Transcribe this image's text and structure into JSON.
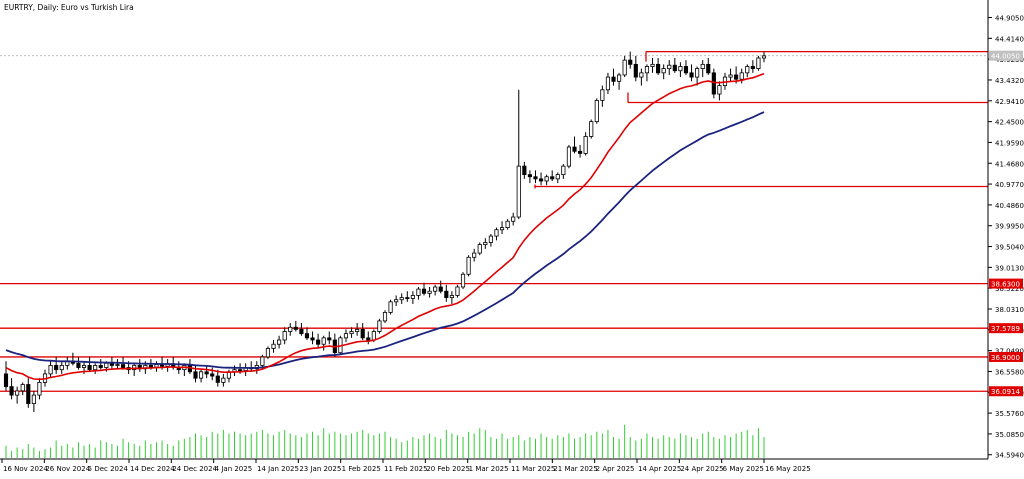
{
  "chart_data": {
    "type": "candlestick",
    "title": "EURTRY, Daily:  Euro vs Turkish Lira",
    "ylim": [
      34.8,
      45.2
    ],
    "y_ticks": [
      "44.9050",
      "44.4140",
      "43.9230",
      "43.4320",
      "42.9410",
      "42.4500",
      "41.9590",
      "41.4680",
      "40.9770",
      "40.4860",
      "39.9950",
      "39.5040",
      "39.0130",
      "38.5220",
      "38.0310",
      "37.5400",
      "37.0490",
      "36.5580",
      "36.0670",
      "35.5760",
      "35.0850",
      "34.5940"
    ],
    "x_labels": [
      "16 Nov 2024",
      "26 Nov 2024",
      "5 Dec 2024",
      "14 Dec 2024",
      "24 Dec 2024",
      "4 Jan 2025",
      "14 Jan 2025",
      "23 Jan 2025",
      "1 Feb 2025",
      "11 Feb 2025",
      "20 Feb 2025",
      "1 Mar 2025",
      "11 Mar 2025",
      "21 Mar 2025",
      "2 Apr 2025",
      "14 Apr 2025",
      "24 Apr 2025",
      "6 May 2025",
      "16 May 2025"
    ],
    "current_price": "44.0050",
    "levels": [
      {
        "value": 44.1,
        "label": ""
      },
      {
        "value": 42.9,
        "label": ""
      },
      {
        "value": 40.92,
        "label": ""
      },
      {
        "value": 38.63,
        "label": "38.6300"
      },
      {
        "value": 37.5789,
        "label": "37.5789"
      },
      {
        "value": 36.9,
        "label": "36.9000"
      },
      {
        "value": 36.0914,
        "label": "36.0914"
      }
    ],
    "candles": [
      [
        36.5,
        36.8,
        36.1,
        36.2
      ],
      [
        36.2,
        36.4,
        35.9,
        36.0
      ],
      [
        36.0,
        36.2,
        35.8,
        36.1
      ],
      [
        36.1,
        36.3,
        36.0,
        36.25
      ],
      [
        36.25,
        36.4,
        35.7,
        35.8
      ],
      [
        35.8,
        36.1,
        35.6,
        36.0
      ],
      [
        36.0,
        36.4,
        35.9,
        36.3
      ],
      [
        36.3,
        36.6,
        36.2,
        36.5
      ],
      [
        36.5,
        36.8,
        36.4,
        36.7
      ],
      [
        36.7,
        36.9,
        36.5,
        36.6
      ],
      [
        36.6,
        36.8,
        36.5,
        36.7
      ],
      [
        36.7,
        36.9,
        36.6,
        36.8
      ],
      [
        36.8,
        37.0,
        36.7,
        36.75
      ],
      [
        36.75,
        36.9,
        36.6,
        36.65
      ],
      [
        36.65,
        36.8,
        36.5,
        36.7
      ],
      [
        36.7,
        36.9,
        36.55,
        36.6
      ],
      [
        36.6,
        36.75,
        36.5,
        36.7
      ],
      [
        36.7,
        36.85,
        36.6,
        36.65
      ],
      [
        36.65,
        36.8,
        36.55,
        36.75
      ],
      [
        36.75,
        36.9,
        36.6,
        36.7
      ],
      [
        36.7,
        36.85,
        36.6,
        36.72
      ],
      [
        36.72,
        36.9,
        36.6,
        36.65
      ],
      [
        36.65,
        36.8,
        36.5,
        36.6
      ],
      [
        36.6,
        36.75,
        36.45,
        36.7
      ],
      [
        36.7,
        36.85,
        36.55,
        36.62
      ],
      [
        36.62,
        36.8,
        36.5,
        36.7
      ],
      [
        36.7,
        36.85,
        36.6,
        36.66
      ],
      [
        36.66,
        36.8,
        36.55,
        36.72
      ],
      [
        36.72,
        36.9,
        36.6,
        36.68
      ],
      [
        36.68,
        36.85,
        36.55,
        36.74
      ],
      [
        36.74,
        36.9,
        36.6,
        36.66
      ],
      [
        36.66,
        36.8,
        36.5,
        36.6
      ],
      [
        36.6,
        36.75,
        36.45,
        36.7
      ],
      [
        36.7,
        36.85,
        36.5,
        36.55
      ],
      [
        36.55,
        36.7,
        36.3,
        36.4
      ],
      [
        36.4,
        36.6,
        36.3,
        36.55
      ],
      [
        36.55,
        36.7,
        36.4,
        36.5
      ],
      [
        36.5,
        36.65,
        36.35,
        36.45
      ],
      [
        36.45,
        36.6,
        36.2,
        36.3
      ],
      [
        36.3,
        36.5,
        36.2,
        36.4
      ],
      [
        36.4,
        36.6,
        36.3,
        36.55
      ],
      [
        36.55,
        36.7,
        36.45,
        36.6
      ],
      [
        36.6,
        36.75,
        36.5,
        36.58
      ],
      [
        36.58,
        36.75,
        36.45,
        36.65
      ],
      [
        36.65,
        36.8,
        36.55,
        36.62
      ],
      [
        36.62,
        36.8,
        36.5,
        36.7
      ],
      [
        36.7,
        36.95,
        36.6,
        36.9
      ],
      [
        36.9,
        37.15,
        36.85,
        37.1
      ],
      [
        37.1,
        37.3,
        37.0,
        37.2
      ],
      [
        37.2,
        37.4,
        37.1,
        37.3
      ],
      [
        37.3,
        37.6,
        37.2,
        37.5
      ],
      [
        37.5,
        37.7,
        37.4,
        37.6
      ],
      [
        37.6,
        37.75,
        37.5,
        37.55
      ],
      [
        37.55,
        37.7,
        37.4,
        37.45
      ],
      [
        37.45,
        37.6,
        37.3,
        37.35
      ],
      [
        37.35,
        37.5,
        37.2,
        37.3
      ],
      [
        37.3,
        37.45,
        37.1,
        37.2
      ],
      [
        37.2,
        37.4,
        37.05,
        37.35
      ],
      [
        37.35,
        37.5,
        37.2,
        37.3
      ],
      [
        37.3,
        37.45,
        36.9,
        37.0
      ],
      [
        37.0,
        37.4,
        36.95,
        37.35
      ],
      [
        37.35,
        37.55,
        37.25,
        37.45
      ],
      [
        37.45,
        37.6,
        37.35,
        37.5
      ],
      [
        37.5,
        37.7,
        37.4,
        37.55
      ],
      [
        37.55,
        37.7,
        37.3,
        37.35
      ],
      [
        37.35,
        37.5,
        37.2,
        37.3
      ],
      [
        37.3,
        37.55,
        37.25,
        37.5
      ],
      [
        37.5,
        37.8,
        37.45,
        37.75
      ],
      [
        37.75,
        38.0,
        37.7,
        37.95
      ],
      [
        37.95,
        38.25,
        37.9,
        38.2
      ],
      [
        38.2,
        38.35,
        38.1,
        38.25
      ],
      [
        38.25,
        38.4,
        38.15,
        38.3
      ],
      [
        38.3,
        38.45,
        38.2,
        38.28
      ],
      [
        38.28,
        38.45,
        38.15,
        38.35
      ],
      [
        38.35,
        38.55,
        38.25,
        38.5
      ],
      [
        38.5,
        38.65,
        38.35,
        38.4
      ],
      [
        38.4,
        38.55,
        38.3,
        38.45
      ],
      [
        38.45,
        38.6,
        38.35,
        38.55
      ],
      [
        38.55,
        38.7,
        38.4,
        38.45
      ],
      [
        38.45,
        38.6,
        38.2,
        38.3
      ],
      [
        38.3,
        38.45,
        38.15,
        38.35
      ],
      [
        38.35,
        38.6,
        38.3,
        38.55
      ],
      [
        38.55,
        38.9,
        38.5,
        38.85
      ],
      [
        38.85,
        39.3,
        38.8,
        39.25
      ],
      [
        39.25,
        39.45,
        39.15,
        39.35
      ],
      [
        39.35,
        39.6,
        39.3,
        39.55
      ],
      [
        39.55,
        39.7,
        39.45,
        39.6
      ],
      [
        39.6,
        39.8,
        39.5,
        39.75
      ],
      [
        39.75,
        39.95,
        39.65,
        39.9
      ],
      [
        39.9,
        40.1,
        39.8,
        39.95
      ],
      [
        39.95,
        40.15,
        39.9,
        40.1
      ],
      [
        40.1,
        40.3,
        40.0,
        40.2
      ],
      [
        40.2,
        43.2,
        40.15,
        41.4
      ],
      [
        41.4,
        41.5,
        41.1,
        41.2
      ],
      [
        41.2,
        41.3,
        41.0,
        41.15
      ],
      [
        41.15,
        41.3,
        41.0,
        41.1
      ],
      [
        41.1,
        41.25,
        40.95,
        41.05
      ],
      [
        41.05,
        41.2,
        40.95,
        41.15
      ],
      [
        41.15,
        41.3,
        41.05,
        41.1
      ],
      [
        41.1,
        41.25,
        41.0,
        41.2
      ],
      [
        41.2,
        41.45,
        41.1,
        41.4
      ],
      [
        41.4,
        41.9,
        41.35,
        41.85
      ],
      [
        41.85,
        42.1,
        41.7,
        41.75
      ],
      [
        41.75,
        41.9,
        41.6,
        41.7
      ],
      [
        41.7,
        42.2,
        41.65,
        42.1
      ],
      [
        42.1,
        42.5,
        42.05,
        42.45
      ],
      [
        42.45,
        43.0,
        42.4,
        42.95
      ],
      [
        42.95,
        43.3,
        42.8,
        43.2
      ],
      [
        43.2,
        43.6,
        43.1,
        43.5
      ],
      [
        43.5,
        43.7,
        43.3,
        43.4
      ],
      [
        43.4,
        43.6,
        43.2,
        43.55
      ],
      [
        43.55,
        44.0,
        43.5,
        43.9
      ],
      [
        43.9,
        44.1,
        43.7,
        43.8
      ],
      [
        43.8,
        44.0,
        43.4,
        43.5
      ],
      [
        43.5,
        43.7,
        43.3,
        43.6
      ],
      [
        43.6,
        43.8,
        43.4,
        43.75
      ],
      [
        43.75,
        43.95,
        43.6,
        43.8
      ],
      [
        43.8,
        43.95,
        43.55,
        43.6
      ],
      [
        43.6,
        43.8,
        43.45,
        43.7
      ],
      [
        43.7,
        43.9,
        43.55,
        43.78
      ],
      [
        43.78,
        43.95,
        43.6,
        43.65
      ],
      [
        43.65,
        43.85,
        43.5,
        43.75
      ],
      [
        43.75,
        43.9,
        43.55,
        43.6
      ],
      [
        43.6,
        43.8,
        43.4,
        43.5
      ],
      [
        43.5,
        43.75,
        43.3,
        43.7
      ],
      [
        43.7,
        43.9,
        43.5,
        43.8
      ],
      [
        43.8,
        43.95,
        43.55,
        43.6
      ],
      [
        43.6,
        43.7,
        43.0,
        43.1
      ],
      [
        43.1,
        43.4,
        42.95,
        43.3
      ],
      [
        43.3,
        43.6,
        43.2,
        43.5
      ],
      [
        43.5,
        43.7,
        43.4,
        43.55
      ],
      [
        43.55,
        43.75,
        43.35,
        43.45
      ],
      [
        43.45,
        43.7,
        43.35,
        43.6
      ],
      [
        43.6,
        43.8,
        43.5,
        43.75
      ],
      [
        43.75,
        43.9,
        43.6,
        43.7
      ],
      [
        43.7,
        44.0,
        43.65,
        43.95
      ],
      [
        43.95,
        44.1,
        43.85,
        44.0
      ]
    ],
    "volumes": [
      0.35,
      0.2,
      0.3,
      0.25,
      0.4,
      0.3,
      0.2,
      0.25,
      0.3,
      0.5,
      0.35,
      0.4,
      0.3,
      0.45,
      0.35,
      0.4,
      0.3,
      0.5,
      0.45,
      0.4,
      0.35,
      0.55,
      0.45,
      0.4,
      0.35,
      0.5,
      0.4,
      0.45,
      0.5,
      0.4,
      0.35,
      0.5,
      0.55,
      0.6,
      0.7,
      0.65,
      0.6,
      0.75,
      0.7,
      0.8,
      0.7,
      0.75,
      0.7,
      0.65,
      0.7,
      0.75,
      0.8,
      0.7,
      0.65,
      0.75,
      0.8,
      0.7,
      0.65,
      0.6,
      0.7,
      0.75,
      0.65,
      0.85,
      0.7,
      0.75,
      0.7,
      0.65,
      0.7,
      0.75,
      0.8,
      0.7,
      0.65,
      0.7,
      0.75,
      0.6,
      0.55,
      0.45,
      0.5,
      0.6,
      0.55,
      0.65,
      0.7,
      0.6,
      0.55,
      0.8,
      0.7,
      0.65,
      0.6,
      0.75,
      0.7,
      0.85,
      0.8,
      0.6,
      0.55,
      0.7,
      0.55,
      0.6,
      0.65,
      0.5,
      0.6,
      0.55,
      0.7,
      0.6,
      0.55,
      0.65,
      0.6,
      0.7,
      0.55,
      0.6,
      0.7,
      0.65,
      0.75,
      0.7,
      0.8,
      0.6,
      0.55,
      0.95,
      0.6,
      0.5,
      0.55,
      0.7,
      0.6,
      0.55,
      0.65,
      0.6,
      0.55,
      0.7,
      0.65,
      0.6,
      0.55,
      0.7,
      0.75,
      0.6,
      0.55,
      0.65,
      0.6,
      0.7,
      0.75,
      0.8,
      0.65,
      0.85,
      0.6
    ]
  }
}
